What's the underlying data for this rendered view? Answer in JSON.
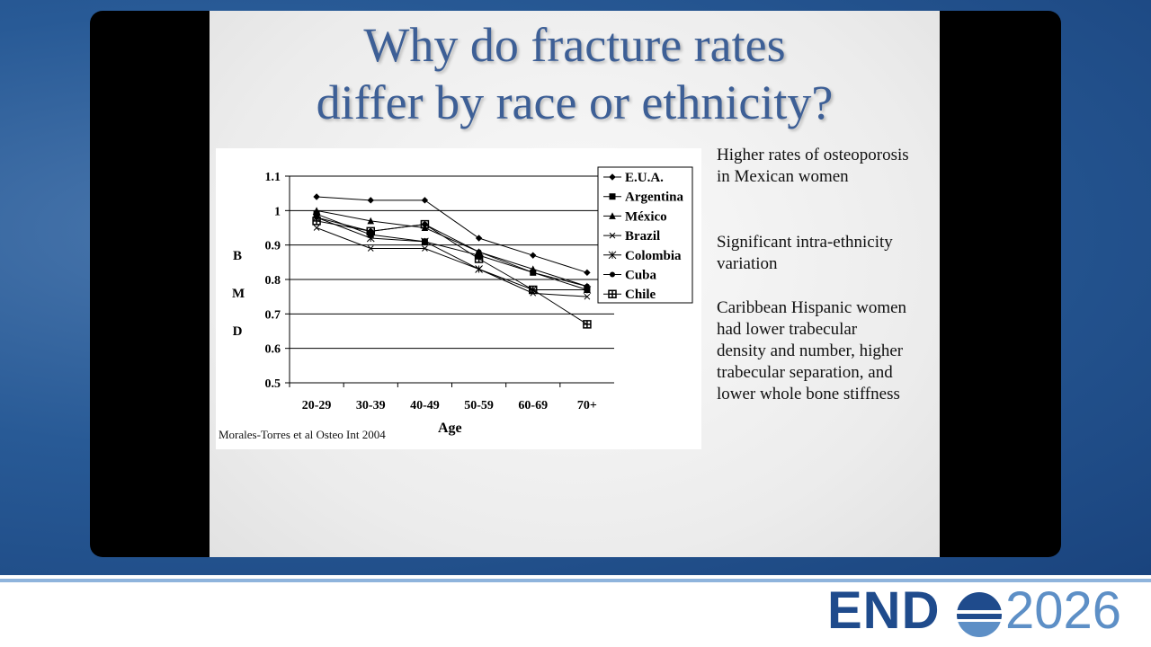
{
  "title_lines": [
    "Why do fracture rates",
    "differ by race or ethnicity?"
  ],
  "paragraphs": [
    "Higher rates of osteoporosis in Mexican women",
    "Significant intra-ethnicity variation",
    "Caribbean Hispanic women had lower trabecular density and number, higher trabecular separation, and lower whole bone stiffness"
  ],
  "citation": "Morales-Torres et al Osteo Int 2004",
  "logo": {
    "left": "END",
    "right": "2026"
  },
  "chart_data": {
    "type": "line",
    "xlabel": "Age",
    "ylabel": "B M D",
    "categories": [
      "20-29",
      "30-39",
      "40-49",
      "50-59",
      "60-69",
      "70+"
    ],
    "ylim": [
      0.5,
      1.1
    ],
    "yticks": [
      0.5,
      0.6,
      0.7,
      0.8,
      0.9,
      1,
      1.1
    ],
    "grid": true,
    "legend": "upper right",
    "series": [
      {
        "name": "E.U.A.",
        "color": "#000000",
        "marker": "diamond",
        "values": [
          1.04,
          1.03,
          1.03,
          0.92,
          0.87,
          0.82
        ]
      },
      {
        "name": "Argentina",
        "color": "#000000",
        "marker": "square",
        "values": [
          0.99,
          0.93,
          0.91,
          0.87,
          0.82,
          0.77
        ]
      },
      {
        "name": "México",
        "color": "#000000",
        "marker": "triangle",
        "values": [
          1.0,
          0.97,
          0.95,
          0.88,
          0.83,
          0.78
        ]
      },
      {
        "name": "Brazil",
        "color": "#000000",
        "marker": "x",
        "values": [
          0.95,
          0.89,
          0.89,
          0.83,
          0.76,
          0.75
        ]
      },
      {
        "name": "Colombia",
        "color": "#000000",
        "marker": "asterisk",
        "values": [
          0.98,
          0.92,
          0.91,
          0.83,
          0.77,
          0.77
        ]
      },
      {
        "name": "Cuba",
        "color": "#000000",
        "marker": "circle",
        "values": [
          0.98,
          0.94,
          0.96,
          0.88,
          0.82,
          0.78
        ]
      },
      {
        "name": "Chile",
        "color": "#000000",
        "marker": "boxcross",
        "values": [
          0.97,
          0.94,
          0.96,
          0.86,
          0.77,
          0.67
        ]
      }
    ]
  }
}
